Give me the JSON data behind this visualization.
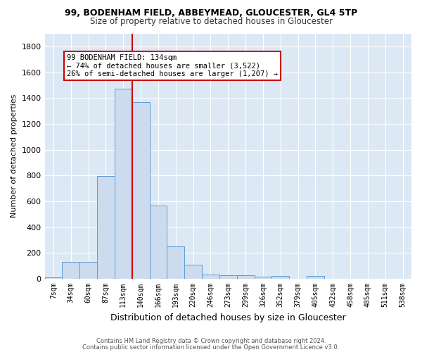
{
  "title1": "99, BODENHAM FIELD, ABBEYMEAD, GLOUCESTER, GL4 5TP",
  "title2": "Size of property relative to detached houses in Gloucester",
  "xlabel": "Distribution of detached houses by size in Gloucester",
  "ylabel": "Number of detached properties",
  "categories": [
    "7sqm",
    "34sqm",
    "60sqm",
    "87sqm",
    "113sqm",
    "140sqm",
    "166sqm",
    "193sqm",
    "220sqm",
    "246sqm",
    "273sqm",
    "299sqm",
    "326sqm",
    "352sqm",
    "379sqm",
    "405sqm",
    "432sqm",
    "458sqm",
    "485sqm",
    "511sqm",
    "538sqm"
  ],
  "values": [
    10,
    130,
    130,
    795,
    1470,
    1370,
    565,
    250,
    110,
    35,
    30,
    30,
    15,
    20,
    0,
    20,
    0,
    0,
    0,
    0,
    0
  ],
  "bar_color": "#ccdcee",
  "bar_edge_color": "#5b9bd5",
  "bar_edge_width": 0.7,
  "vline_color": "#cc0000",
  "annotation_text": "99 BODENHAM FIELD: 134sqm\n← 74% of detached houses are smaller (3,522)\n26% of semi-detached houses are larger (1,207) →",
  "annotation_box_color": "#ffffff",
  "annotation_box_edge": "#cc0000",
  "footer1": "Contains HM Land Registry data © Crown copyright and database right 2024.",
  "footer2": "Contains public sector information licensed under the Open Government Licence v3.0.",
  "ylim": [
    0,
    1900
  ],
  "plot_bg_color": "#dce9f5",
  "fig_bg_color": "#ffffff",
  "grid_color": "#ffffff",
  "yticks": [
    0,
    200,
    400,
    600,
    800,
    1000,
    1200,
    1400,
    1600,
    1800
  ]
}
